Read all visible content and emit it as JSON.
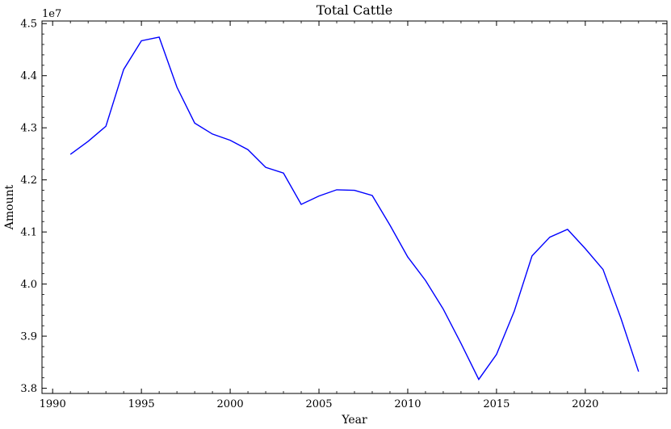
{
  "chart_data": {
    "type": "line",
    "title": "Total Cattle",
    "xlabel": "Year",
    "ylabel": "Amount",
    "y_offset_label": "1e7",
    "xlim": [
      1989.4,
      2024.6
    ],
    "ylim": [
      3.79,
      4.505
    ],
    "x_ticks": [
      1990,
      1995,
      2000,
      2005,
      2010,
      2015,
      2020
    ],
    "x_tick_labels": [
      "1990",
      "1995",
      "2000",
      "2005",
      "2010",
      "2015",
      "2020"
    ],
    "y_ticks": [
      3.8,
      3.9,
      4.0,
      4.1,
      4.2,
      4.3,
      4.4,
      4.5
    ],
    "y_tick_labels": [
      "3.8",
      "3.9",
      "4.0",
      "4.1",
      "4.2",
      "4.3",
      "4.4",
      "4.5"
    ],
    "grid": false,
    "series": [
      {
        "color": "#0000ff",
        "x": [
          1991,
          1992,
          1993,
          1994,
          1995,
          1996,
          1997,
          1998,
          1999,
          2000,
          2001,
          2002,
          2003,
          2004,
          2005,
          2006,
          2007,
          2008,
          2009,
          2010,
          2011,
          2012,
          2013,
          2014,
          2015,
          2016,
          2017,
          2018,
          2019,
          2020,
          2021,
          2022,
          2023
        ],
        "y": [
          4.249,
          4.274,
          4.303,
          4.412,
          4.467,
          4.474,
          4.378,
          4.309,
          4.288,
          4.276,
          4.258,
          4.224,
          4.213,
          4.153,
          4.169,
          4.181,
          4.18,
          4.17,
          4.113,
          4.052,
          4.007,
          3.952,
          3.886,
          3.817,
          3.865,
          3.948,
          4.054,
          4.09,
          4.105,
          4.068,
          4.028,
          3.935,
          3.832
        ]
      }
    ]
  }
}
